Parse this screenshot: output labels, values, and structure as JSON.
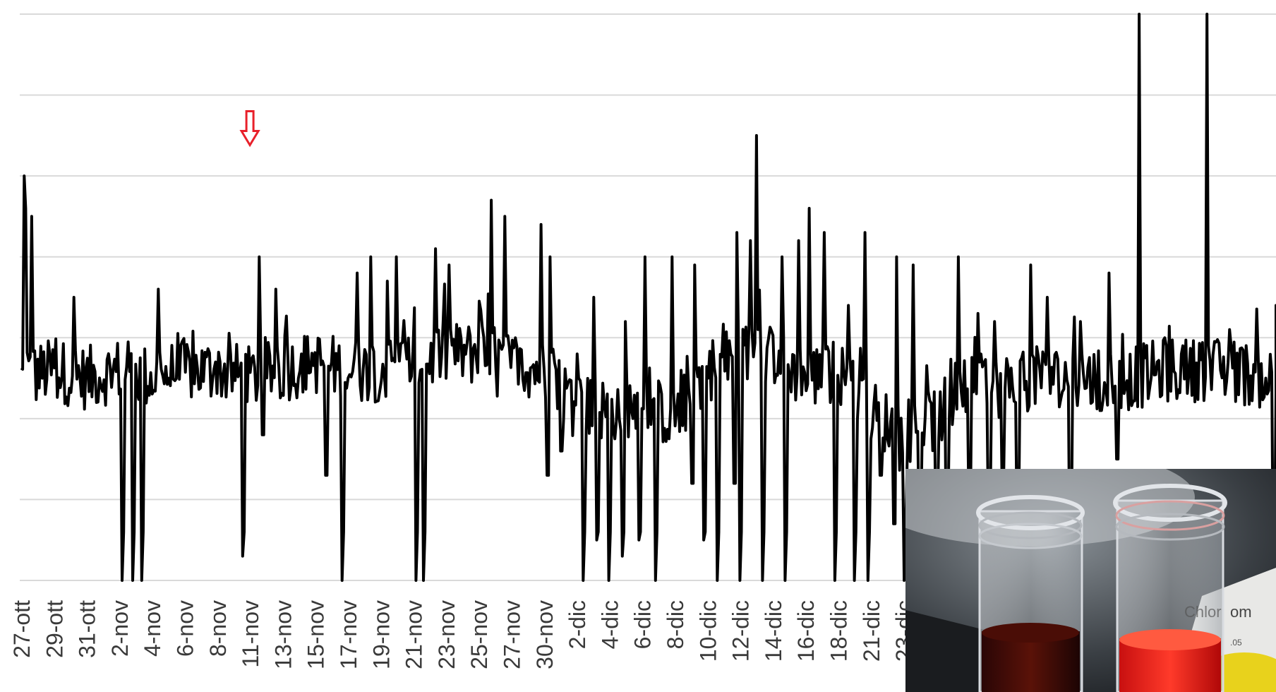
{
  "chart_data": {
    "type": "line",
    "title": "",
    "xlabel": "",
    "ylabel": "",
    "grid": true,
    "legend": "none",
    "line_color": "#000000",
    "annotation_color": "#e8202a",
    "annotation": {
      "type": "down-arrow",
      "at_category": "10-nov",
      "y": 5.8
    },
    "ylim": [
      0,
      7
    ],
    "y_gridlines": [
      0,
      1,
      2,
      3,
      4,
      5,
      6,
      7
    ],
    "x_ticks": [
      "27-ott",
      "29-ott",
      "31-ott",
      "2-nov",
      "4-nov",
      "6-nov",
      "8-nov",
      "11-nov",
      "13-nov",
      "15-nov",
      "17-nov",
      "19-nov",
      "21-nov",
      "23-nov",
      "25-nov",
      "27-nov",
      "30-nov",
      "2-dic",
      "4-dic",
      "6-dic",
      "8-dic",
      "10-dic",
      "12-dic",
      "14-dic",
      "16-dic",
      "18-dic",
      "21-dic",
      "23-dic"
    ],
    "series_profile": {
      "baseline": [
        [
          0,
          2.5
        ],
        [
          1,
          2.6
        ],
        [
          2,
          2.5
        ],
        [
          3,
          2.6
        ],
        [
          4,
          2.5
        ],
        [
          5,
          2.6
        ],
        [
          6,
          2.6
        ],
        [
          7,
          2.5
        ],
        [
          8,
          2.6
        ],
        [
          9,
          2.7
        ],
        [
          10,
          2.6
        ],
        [
          11,
          2.6
        ],
        [
          12,
          2.7
        ],
        [
          13,
          2.8
        ],
        [
          14,
          2.8
        ],
        [
          15,
          2.7
        ],
        [
          16,
          2.6
        ],
        [
          17,
          2.2
        ],
        [
          18,
          2.1
        ],
        [
          19,
          2.2
        ],
        [
          20,
          2.0
        ],
        [
          21,
          2.6
        ],
        [
          22,
          2.8
        ],
        [
          23,
          2.8
        ],
        [
          24,
          2.5
        ],
        [
          25,
          2.6
        ],
        [
          26,
          2.1
        ],
        [
          27,
          1.8
        ],
        [
          28,
          2.0
        ],
        [
          29,
          2.4
        ],
        [
          30,
          2.4
        ],
        [
          31,
          2.5
        ],
        [
          32,
          2.5
        ],
        [
          33,
          2.5
        ],
        [
          34,
          2.5
        ],
        [
          35,
          2.6
        ],
        [
          36,
          2.6
        ],
        [
          37,
          2.6
        ],
        [
          38,
          2.5
        ],
        [
          39,
          2.6
        ],
        [
          40,
          2.6
        ],
        [
          41,
          2.5
        ]
      ],
      "spikes": [
        [
          0.1,
          5.0
        ],
        [
          0.15,
          4.6
        ],
        [
          0.3,
          4.5
        ],
        [
          1.6,
          3.5
        ],
        [
          4.2,
          3.6
        ],
        [
          7.3,
          4.0
        ],
        [
          7.8,
          3.6
        ],
        [
          10.3,
          3.8
        ],
        [
          10.7,
          4.0
        ],
        [
          11.2,
          3.7
        ],
        [
          11.5,
          4.0
        ],
        [
          12.7,
          4.1
        ],
        [
          13.1,
          3.9
        ],
        [
          14.4,
          4.7
        ],
        [
          14.8,
          4.5
        ],
        [
          15.9,
          4.4
        ],
        [
          16.2,
          4.0
        ],
        [
          17.0,
          2.8
        ],
        [
          17.5,
          3.5
        ],
        [
          18.5,
          3.2
        ],
        [
          19.1,
          4.0
        ],
        [
          19.9,
          4.0
        ],
        [
          20.6,
          3.9
        ],
        [
          21.3,
          4.8
        ],
        [
          21.9,
          4.3
        ],
        [
          22.3,
          4.2
        ],
        [
          22.5,
          5.5
        ],
        [
          23.3,
          4.0
        ],
        [
          23.8,
          4.2
        ],
        [
          24.1,
          4.6
        ],
        [
          24.6,
          4.3
        ],
        [
          25.3,
          3.4
        ],
        [
          25.8,
          4.3
        ],
        [
          26.3,
          3.9
        ],
        [
          26.8,
          4.0
        ],
        [
          27.3,
          3.9
        ],
        [
          28.3,
          4.4
        ],
        [
          28.7,
          4.0
        ],
        [
          29.3,
          3.3
        ],
        [
          29.8,
          3.2
        ],
        [
          30.9,
          3.9
        ],
        [
          31.4,
          3.5
        ],
        [
          32.4,
          3.2
        ],
        [
          33.0,
          3.7
        ],
        [
          33.3,
          3.8
        ],
        [
          34.2,
          7.0
        ],
        [
          35.0,
          3.0
        ],
        [
          35.5,
          2.8
        ],
        [
          36.3,
          7.0
        ],
        [
          37.0,
          3.1
        ],
        [
          38.9,
          3.4
        ],
        [
          39.8,
          3.3
        ],
        [
          40.2,
          3.2
        ]
      ],
      "dips": [
        [
          3.1,
          0
        ],
        [
          3.4,
          0
        ],
        [
          3.7,
          0
        ],
        [
          6.8,
          0.3
        ],
        [
          7.4,
          1.8
        ],
        [
          9.3,
          1.3
        ],
        [
          9.8,
          0
        ],
        [
          12.1,
          0
        ],
        [
          12.3,
          0
        ],
        [
          16.1,
          1.3
        ],
        [
          16.5,
          1.6
        ],
        [
          17.2,
          0
        ],
        [
          17.6,
          0.5
        ],
        [
          18.0,
          0
        ],
        [
          18.4,
          0.3
        ],
        [
          18.9,
          0.5
        ],
        [
          19.4,
          0
        ],
        [
          20.5,
          1.2
        ],
        [
          20.9,
          0.5
        ],
        [
          21.3,
          0
        ],
        [
          21.8,
          1.2
        ],
        [
          22.0,
          0
        ],
        [
          22.7,
          0
        ],
        [
          23.4,
          0
        ],
        [
          24.9,
          0
        ],
        [
          25.5,
          0
        ],
        [
          25.9,
          0
        ],
        [
          26.3,
          1.3
        ],
        [
          26.7,
          0.7
        ],
        [
          27.0,
          0
        ],
        [
          27.5,
          0.6
        ],
        [
          28.0,
          0.7
        ],
        [
          28.3,
          0.3
        ],
        [
          29.0,
          0.8
        ],
        [
          29.6,
          0.6
        ],
        [
          30.0,
          1.2
        ],
        [
          30.5,
          0.5
        ],
        [
          32.1,
          0
        ],
        [
          33.0,
          2.1
        ],
        [
          33.5,
          1.5
        ],
        [
          38.3,
          0
        ],
        [
          39.6,
          1.8
        ],
        [
          40.6,
          0.9
        ]
      ]
    }
  },
  "photo": {
    "description_icon": "test-tubes-photo-icon",
    "label_text": "Chlor",
    "label_text2": "om",
    "label_small": ".05"
  }
}
